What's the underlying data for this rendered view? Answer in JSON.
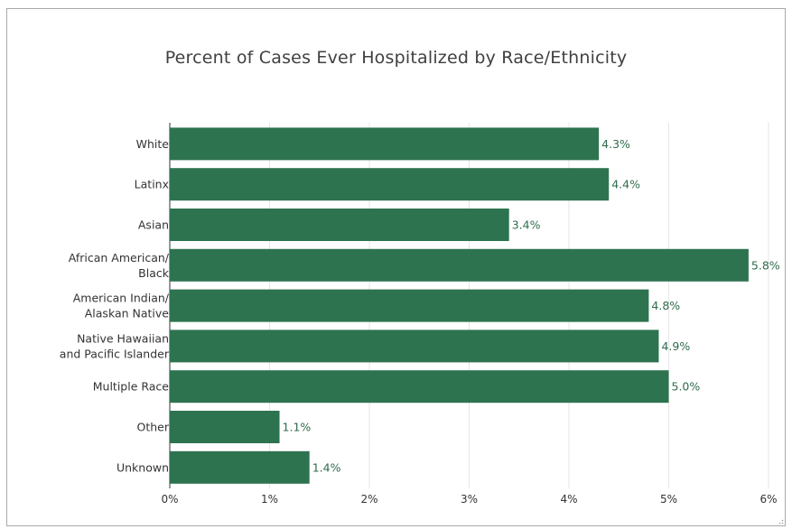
{
  "chart_data": {
    "type": "bar",
    "orientation": "horizontal",
    "title": "Percent of Cases Ever Hospitalized by Race/Ethnicity",
    "categories": [
      [
        "White"
      ],
      [
        "Latinx"
      ],
      [
        "Asian"
      ],
      [
        "African American/",
        "Black"
      ],
      [
        "American Indian/",
        "Alaskan Native"
      ],
      [
        "Native Hawaiian",
        "and Pacific Islander"
      ],
      [
        "Multiple Race"
      ],
      [
        "Other"
      ],
      [
        "Unknown"
      ]
    ],
    "values": [
      4.3,
      4.4,
      3.4,
      5.8,
      4.8,
      4.9,
      5.0,
      1.1,
      1.4
    ],
    "value_labels": [
      "4.3%",
      "4.4%",
      "3.4%",
      "5.8%",
      "4.8%",
      "4.9%",
      "5.0%",
      "1.1%",
      "1.4%"
    ],
    "xlim": [
      0,
      6
    ],
    "x_ticks": [
      0,
      1,
      2,
      3,
      4,
      5,
      6
    ],
    "x_tick_labels": [
      "0%",
      "1%",
      "2%",
      "3%",
      "4%",
      "5%",
      "6%"
    ],
    "xlabel": "",
    "ylabel": "",
    "grid": "vertical",
    "bar_color": "#2e7350",
    "label_color": "#2f6b4c"
  }
}
